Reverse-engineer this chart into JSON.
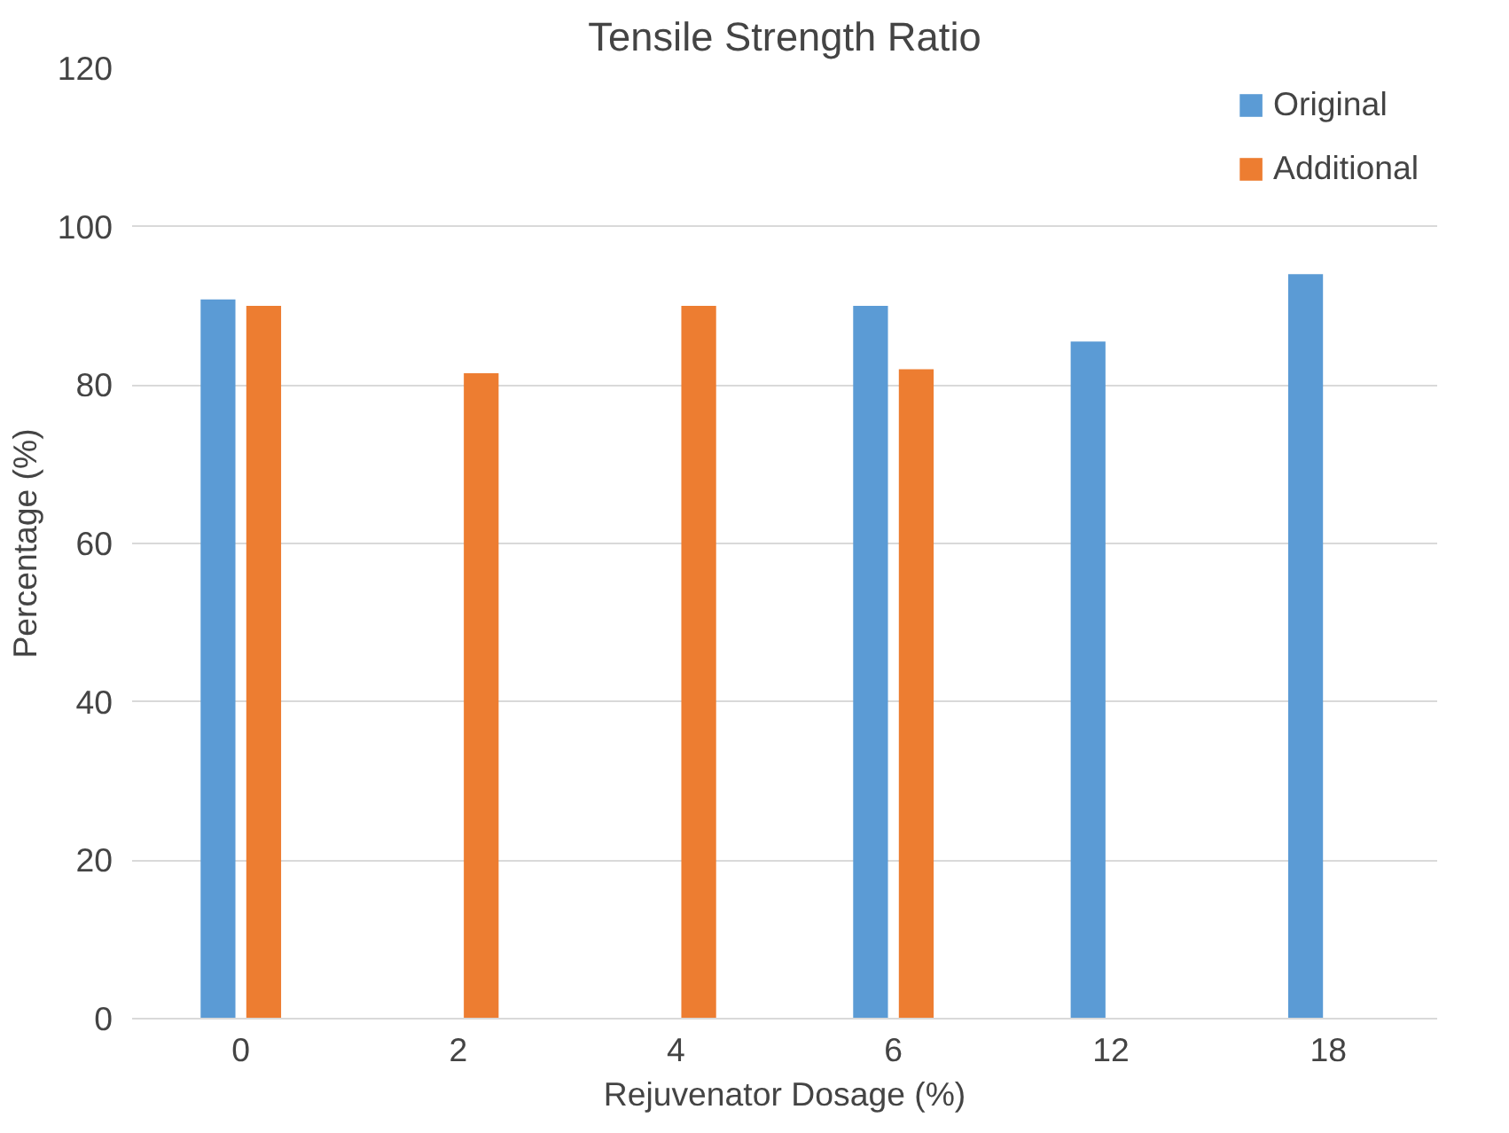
{
  "chart_data": {
    "type": "bar",
    "title": "Tensile Strength Ratio",
    "xlabel": "Rejuvenator Dosage (%)",
    "ylabel": "Percentage (%)",
    "categories": [
      "0",
      "2",
      "4",
      "6",
      "12",
      "18"
    ],
    "series": [
      {
        "name": "Original",
        "color": "#5b9bd5",
        "values": [
          90.8,
          null,
          null,
          90,
          85.5,
          94
        ]
      },
      {
        "name": "Additional",
        "color": "#ed7d31",
        "values": [
          90,
          81.5,
          90,
          82,
          null,
          null
        ]
      }
    ],
    "ylim": [
      0,
      120
    ],
    "yticks": [
      0,
      20,
      40,
      60,
      80,
      100,
      120
    ],
    "grid": "y",
    "legend": "top right"
  }
}
